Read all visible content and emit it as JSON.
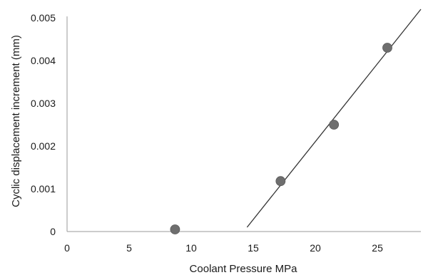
{
  "chart_data": {
    "type": "scatter",
    "title": "",
    "xlabel": "Coolant Pressure MPa",
    "ylabel": "Cyclic displacement increment (mm)",
    "xlim": [
      0,
      28.5
    ],
    "ylim": [
      0,
      0.005
    ],
    "x_ticks": [
      "0",
      "5",
      "10",
      "15",
      "20",
      "25"
    ],
    "x_tick_values": [
      0,
      5,
      10,
      15,
      20,
      25
    ],
    "y_ticks": [
      "0",
      "0.001",
      "0.002",
      "0.003",
      "0.004",
      "0.005"
    ],
    "y_tick_values": [
      0,
      0.001,
      0.002,
      0.003,
      0.004,
      0.005
    ],
    "grid": false,
    "legend": "none",
    "series": [
      {
        "type": "scatter",
        "x": [
          8.7,
          17.2,
          21.5,
          25.8
        ],
        "y": [
          5e-05,
          0.00118,
          0.0025,
          0.0043
        ]
      },
      {
        "type": "line",
        "x": [
          14.5,
          28.5
        ],
        "y": [
          0.0001,
          0.0052
        ]
      }
    ],
    "colors": {
      "marker": "#6e6e6e",
      "line": "#333333",
      "axis": "#9a9a9a"
    }
  }
}
